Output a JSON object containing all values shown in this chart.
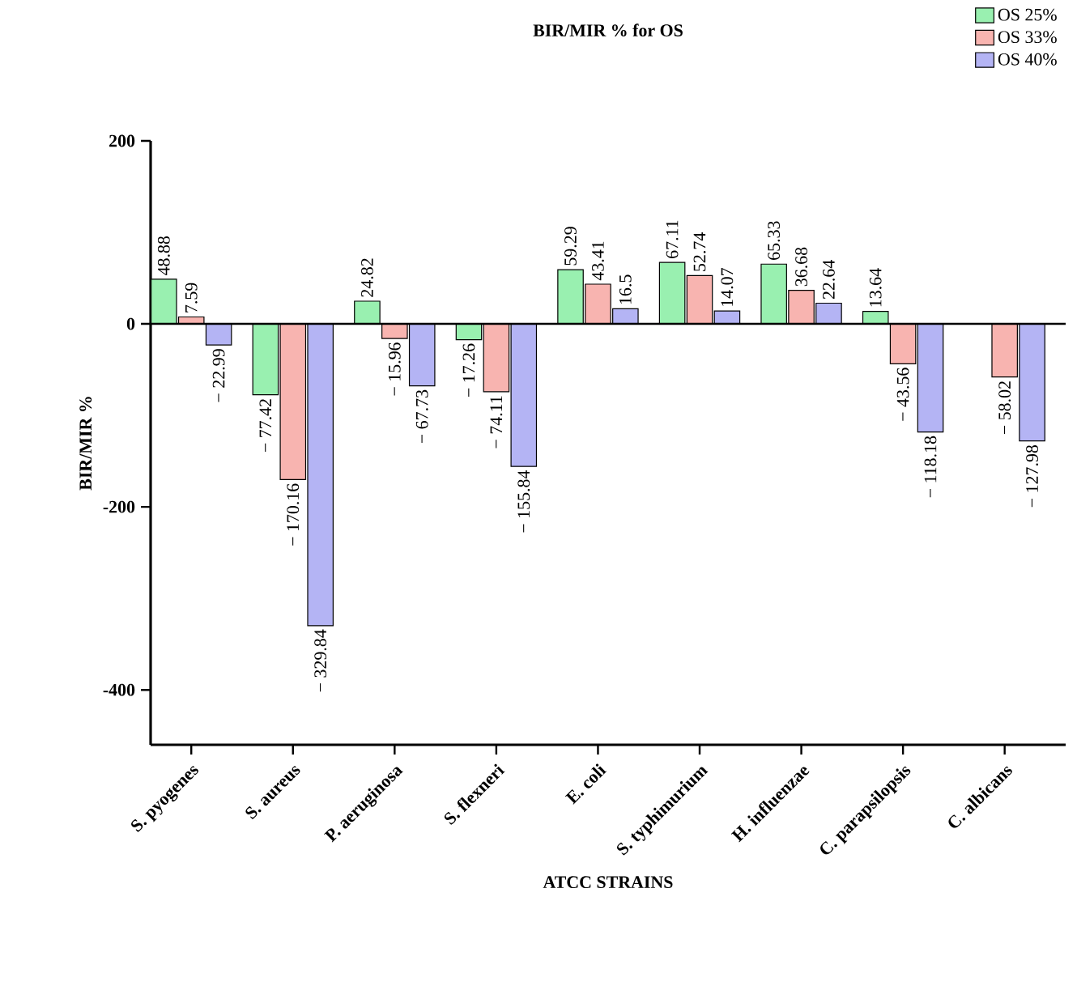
{
  "chart_data": {
    "type": "bar",
    "title": "BIR/MIR % for OS",
    "xlabel": "ATCC STRAINS",
    "ylabel": "BIR/MIR %",
    "categories": [
      "S. pyogenes",
      "S. aureus",
      "P. aeruginosa",
      "S. flexneri",
      "E. coli",
      "S. typhimurium",
      "H. influenzae",
      "C. parapsilopsis",
      "C. albicans"
    ],
    "series": [
      {
        "name": "OS 25%",
        "color": "#99f0b0",
        "values": [
          48.88,
          -77.42,
          24.82,
          -17.26,
          59.29,
          67.11,
          65.33,
          13.64,
          null
        ],
        "value_labels": [
          "48.88",
          "− 77.42",
          "24.82",
          "− 17.26",
          "59.29",
          "67.11",
          "65.33",
          "13.64",
          null
        ]
      },
      {
        "name": "OS 33%",
        "color": "#f8b4b0",
        "values": [
          7.59,
          -170.16,
          -15.96,
          -74.11,
          43.41,
          52.74,
          36.68,
          -43.56,
          -58.02
        ],
        "value_labels": [
          "7.59",
          "− 170.16",
          "− 15.96",
          "− 74.11",
          "43.41",
          "52.74",
          "36.68",
          "− 43.56",
          "− 58.02"
        ]
      },
      {
        "name": "OS 40%",
        "color": "#b4b4f4",
        "values": [
          -22.99,
          -329.84,
          -67.73,
          -155.84,
          16.5,
          14.07,
          22.64,
          -118.18,
          -127.98
        ],
        "value_labels": [
          "− 22.99",
          "− 329.84",
          "− 67.73",
          "− 155.84",
          "16.5",
          "14.07",
          "22.64",
          "− 118.18",
          "− 127.98"
        ]
      }
    ],
    "ylim": [
      -460,
      200
    ],
    "yticks": [
      -400,
      -200,
      0,
      200
    ],
    "ref_lines": [
      {
        "axis": "y",
        "value": 0,
        "color": "#000000"
      }
    ],
    "legend": "top right"
  }
}
